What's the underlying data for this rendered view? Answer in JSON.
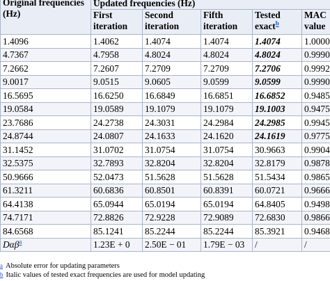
{
  "header": {
    "original": "Original frequencies (Hz)",
    "updated": "Updated frequencies (Hz)",
    "first": "First iteration",
    "second": "Second iteration",
    "fifth": "Fifth iteration",
    "tested": "Tested exact",
    "tested_note": "b",
    "mac": "MAC value"
  },
  "rows": [
    [
      "1.4096",
      "1.4062",
      "1.4074",
      "1.4074",
      "1.4074",
      "1.0000"
    ],
    [
      "4.7367",
      "4.7958",
      "4.8024",
      "4.8024",
      "4.8024",
      "0.9990"
    ],
    [
      "7.2662",
      "7.2607",
      "7.2709",
      "7.2709",
      "7.2706",
      "0.9992"
    ],
    [
      "9.0017",
      "9.0515",
      "9.0605",
      "9.0599",
      "9.0599",
      "0.9990"
    ],
    [
      "16.5695",
      "16.6250",
      "16.6849",
      "16.6851",
      "16.6852",
      "0.9485"
    ],
    [
      "19.0584",
      "19.0589",
      "19.1079",
      "19.1079",
      "19.1003",
      "0.9475"
    ],
    [
      "23.7686",
      "24.2738",
      "24.3031",
      "24.2984",
      "24.2985",
      "0.9945"
    ],
    [
      "24.8744",
      "24.0807",
      "24.1633",
      "24.1620",
      "24.1619",
      "0.9775"
    ],
    [
      "31.1452",
      "31.0702",
      "31.0754",
      "31.0754",
      "30.9663",
      "0.9904"
    ],
    [
      "32.5375",
      "32.7893",
      "32.8204",
      "32.8204",
      "32.8179",
      "0.9878"
    ],
    [
      "50.9666",
      "52.0473",
      "51.5628",
      "51.5628",
      "51.5434",
      "0.9865"
    ],
    [
      "61.3211",
      "60.6836",
      "60.8501",
      "60.8391",
      "60.0721",
      "0.9666"
    ],
    [
      "64.4138",
      "65.0944",
      "65.0194",
      "65.0194",
      "64.8405",
      "0.9498"
    ],
    [
      "74.7171",
      "72.8826",
      "72.9228",
      "72.9089",
      "72.6830",
      "0.9866"
    ],
    [
      "84.6568",
      "85.1241",
      "85.2244",
      "85.2244",
      "85.3921",
      "0.9468"
    ]
  ],
  "error_row": {
    "label_main": "Dαβ",
    "label_note": "a",
    "first": "1.23E + 0",
    "second": "2.50E − 01",
    "fifth": "1.79E − 03",
    "tested": "/",
    "mac": "/"
  },
  "footnotes": [
    {
      "mark": "a",
      "text": "Absolute error for updating parameters"
    },
    {
      "mark": "b",
      "text": "Italic values of tested exact frequencies are used for model updating"
    }
  ]
}
